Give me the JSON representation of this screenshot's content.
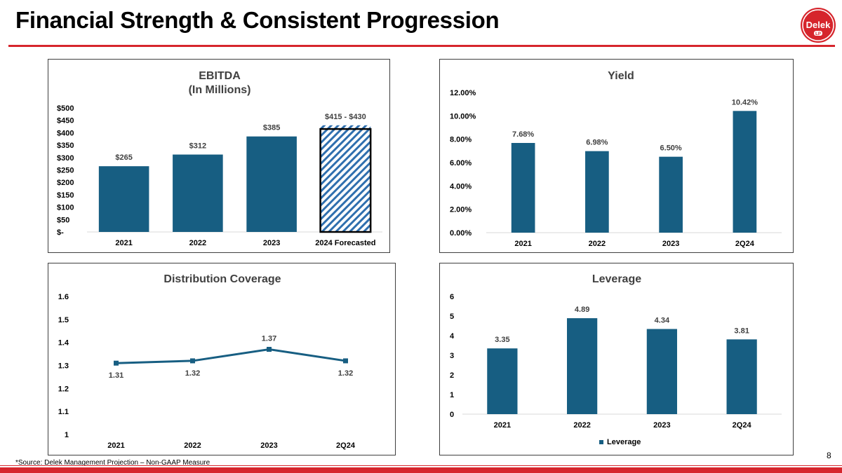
{
  "page": {
    "title": "Financial Strength & Consistent Progression",
    "logo_text": "Delek",
    "logo_sub": "LP",
    "footnote": "*Source: Delek Management Projection – Non-GAAP Measure",
    "page_number": "8"
  },
  "colors": {
    "bar": "#175e82",
    "accent": "#d6252c",
    "hatch": "#2f6fae"
  },
  "chart_data": [
    {
      "id": "ebitda",
      "type": "bar",
      "title": "EBITDA",
      "subtitle": "(In Millions)",
      "categories": [
        "2021",
        "2022",
        "2023",
        "2024 Forecasted"
      ],
      "values": [
        265,
        312,
        385,
        415
      ],
      "forecast_range": [
        415,
        430
      ],
      "value_labels": [
        "$265",
        "$312",
        "$385",
        "$415 - $430"
      ],
      "ylim": [
        0,
        500
      ],
      "yticks": [
        0,
        50,
        100,
        150,
        200,
        250,
        300,
        350,
        400,
        450,
        500
      ],
      "ytick_labels": [
        "$-",
        "$50",
        "$100",
        "$150",
        "$200",
        "$250",
        "$300",
        "$350",
        "$400",
        "$450",
        "$500"
      ]
    },
    {
      "id": "yield",
      "type": "bar",
      "title": "Yield",
      "categories": [
        "2021",
        "2022",
        "2023",
        "2Q24"
      ],
      "values": [
        7.68,
        6.98,
        6.5,
        10.42
      ],
      "value_labels": [
        "7.68%",
        "6.98%",
        "6.50%",
        "10.42%"
      ],
      "ylim": [
        0,
        12
      ],
      "yticks": [
        0,
        2,
        4,
        6,
        8,
        10,
        12
      ],
      "ytick_labels": [
        "0.00%",
        "2.00%",
        "4.00%",
        "6.00%",
        "8.00%",
        "10.00%",
        "12.00%"
      ]
    },
    {
      "id": "coverage",
      "type": "line",
      "title": "Distribution Coverage",
      "categories": [
        "2021",
        "2022",
        "2023",
        "2Q24"
      ],
      "values": [
        1.31,
        1.32,
        1.37,
        1.32
      ],
      "value_labels": [
        "1.31",
        "1.32",
        "1.37",
        "1.32"
      ],
      "ylim": [
        1,
        1.6
      ],
      "yticks": [
        1,
        1.1,
        1.2,
        1.3,
        1.4,
        1.5,
        1.6
      ],
      "ytick_labels": [
        "1",
        "1.1",
        "1.2",
        "1.3",
        "1.4",
        "1.5",
        "1.6"
      ]
    },
    {
      "id": "leverage",
      "type": "bar",
      "title": "Leverage",
      "categories": [
        "2021",
        "2022",
        "2023",
        "2Q24"
      ],
      "values": [
        3.35,
        4.89,
        4.34,
        3.81
      ],
      "value_labels": [
        "3.35",
        "4.89",
        "4.34",
        "3.81"
      ],
      "ylim": [
        0,
        6
      ],
      "yticks": [
        0,
        1,
        2,
        3,
        4,
        5,
        6
      ],
      "ytick_labels": [
        "0",
        "1",
        "2",
        "3",
        "4",
        "5",
        "6"
      ],
      "legend": "Leverage"
    }
  ]
}
